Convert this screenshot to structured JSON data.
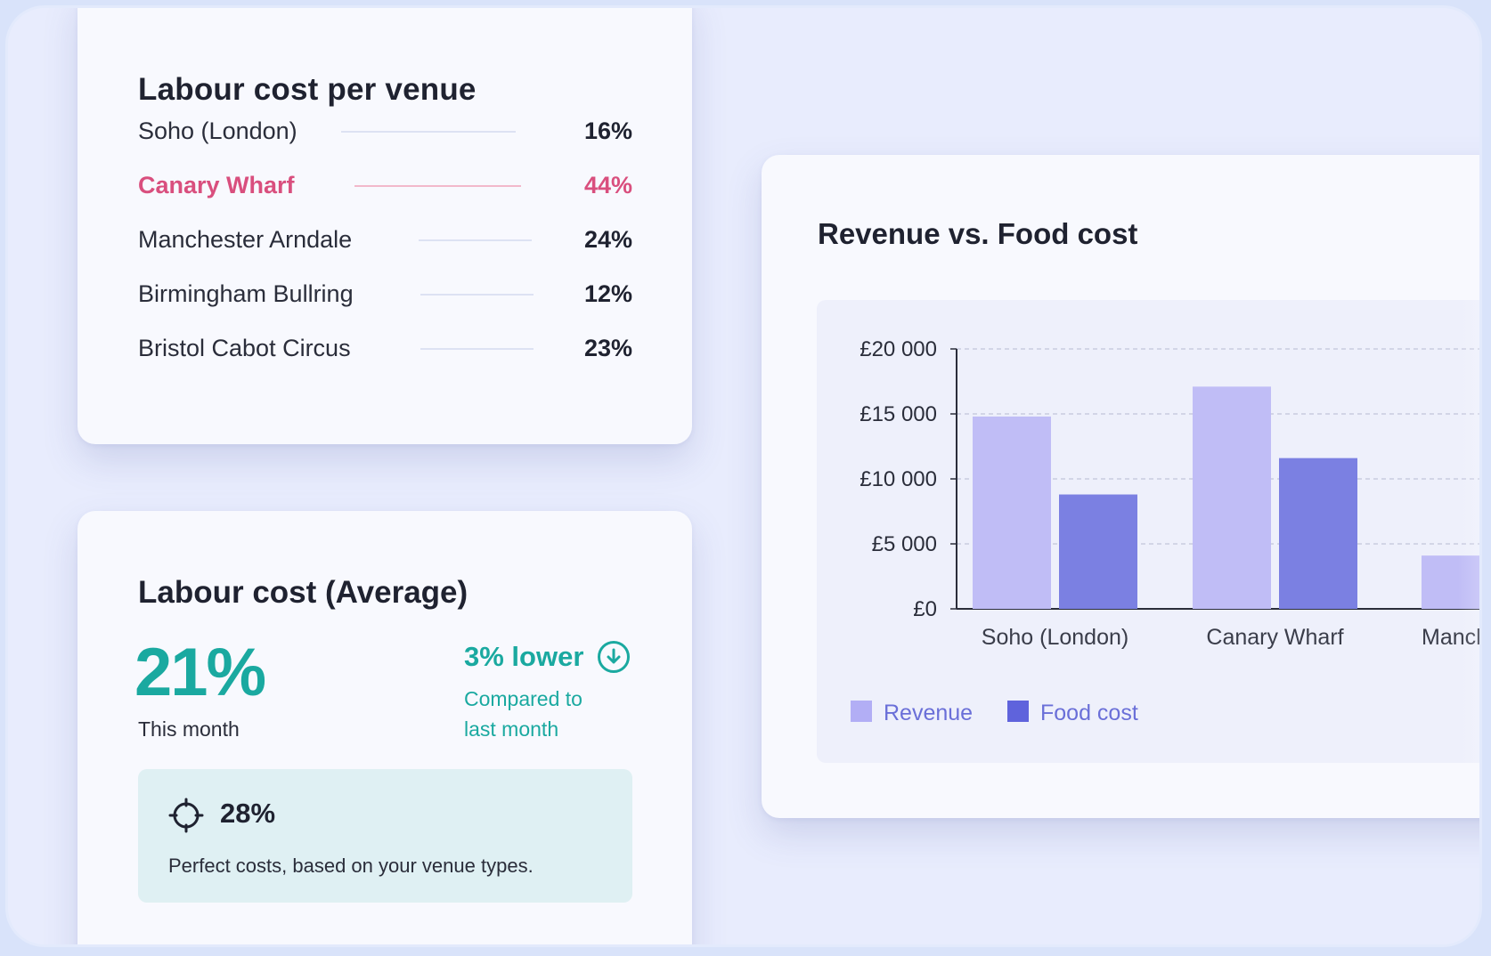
{
  "labour_per_venue": {
    "title": "Labour cost per venue",
    "venues": [
      {
        "name": "Soho (London)",
        "value": "16%",
        "highlight": false
      },
      {
        "name": "Canary Wharf",
        "value": "44%",
        "highlight": true
      },
      {
        "name": "Manchester Arndale",
        "value": "24%",
        "highlight": false
      },
      {
        "name": "Birmingham Bullring",
        "value": "12%",
        "highlight": false
      },
      {
        "name": "Bristol Cabot Circus",
        "value": "23%",
        "highlight": false
      }
    ]
  },
  "labour_average": {
    "title": "Labour cost (Average)",
    "value": "21%",
    "period": "This month",
    "change": "3% lower",
    "change_icon": "arrow-down-circle-icon",
    "compared_line1": "Compared to",
    "compared_line2": "last month",
    "target_icon": "crosshair-icon",
    "target_value": "28%",
    "target_description": "Perfect costs, based on your venue types."
  },
  "colors": {
    "accent_teal": "#1aa9a0",
    "highlight_pink": "#d94f7e",
    "revenue": "#c0bdf6",
    "food_cost": "#7b80e2",
    "revenue_legend": "#b2aef5",
    "food_cost_legend": "#5f63dc",
    "legend_text": "#6a6fd8"
  },
  "chart": {
    "title": "Revenue vs. Food cost"
  },
  "chart_data": {
    "type": "bar",
    "categories": [
      "Soho (London)",
      "Canary Wharf",
      "Manch"
    ],
    "series": [
      {
        "name": "Revenue",
        "values": [
          14800,
          17100,
          4100
        ]
      },
      {
        "name": "Food cost",
        "values": [
          8800,
          11600,
          null
        ]
      }
    ],
    "yticks": [
      "£20 000",
      "£15 000",
      "£10 000",
      "£5 000",
      "£0"
    ],
    "ylim": [
      0,
      20000
    ],
    "grid": true,
    "legend": "bottom-left"
  }
}
